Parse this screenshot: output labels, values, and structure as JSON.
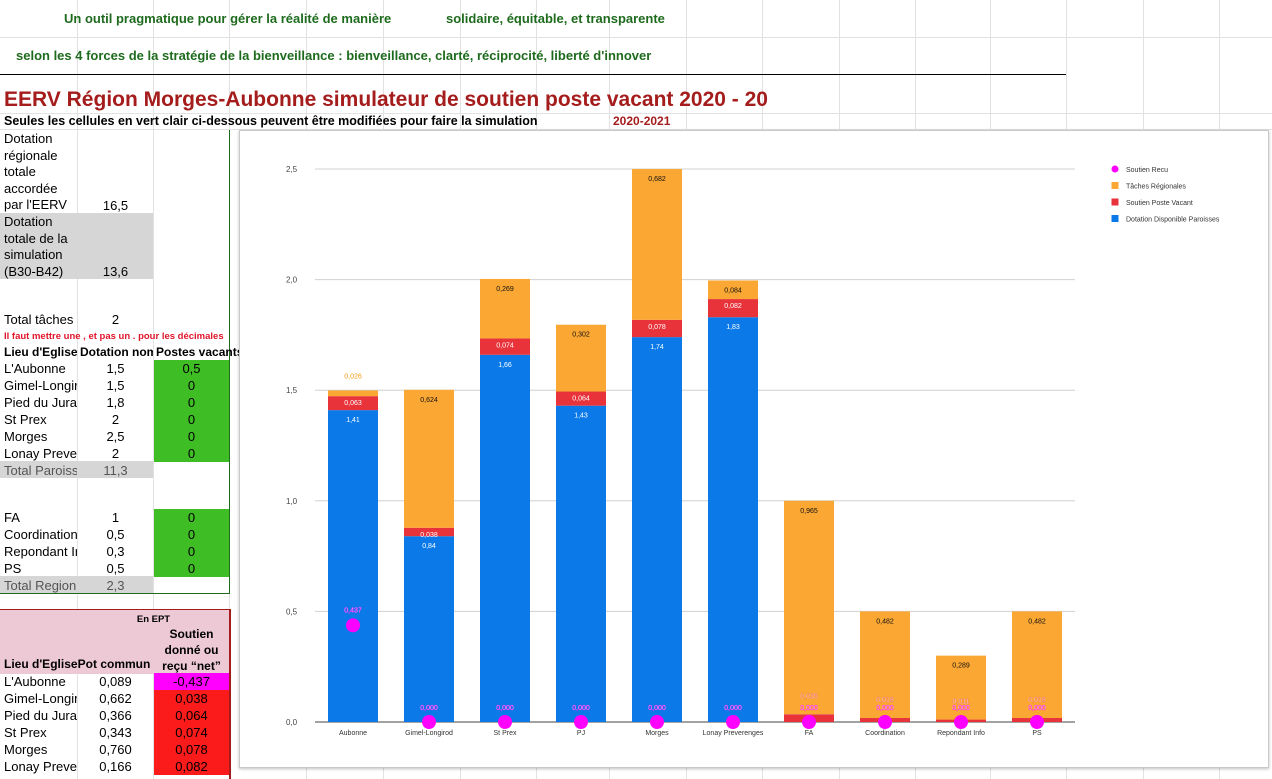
{
  "header": {
    "line1_left": "Un outil pragmatique pour gérer la réalité de manière",
    "line1_right": "solidaire, équitable, et transparente",
    "line2": "selon les 4 forces de la stratégie de la bienveillance : bienveillance, clarté, réciprocité, liberté d'innover"
  },
  "title": "EERV Région Morges-Aubonne  simulateur de soutien poste vacant 2020 - 20",
  "subtitle": "Seules les cellules en vert clair ci-dessous peuvent être modifiées pour faire la simulation",
  "year_label": "2020-2021",
  "dotation_total": {
    "label_lines": [
      "Dotation",
      "régionale",
      "totale",
      "accordée",
      "par l'EERV"
    ],
    "value": "16,5"
  },
  "dotation_sim": {
    "label_lines": [
      "Dotation",
      "totale de la",
      "simulation",
      "(B30-B42)"
    ],
    "value": "13,6"
  },
  "total_taches": {
    "label": "Total tâches r",
    "value": "2"
  },
  "warning": "Il faut mettre une , et pas un . pour les décimales",
  "table1_headers": [
    "Lieu d'Eglise",
    "Dotation nom",
    "Postes vacants"
  ],
  "paroisses": [
    {
      "name": "L'Aubonne",
      "dotation": "1,5",
      "postes": "0,5"
    },
    {
      "name": "Gimel-Longir",
      "dotation": "1,5",
      "postes": "0"
    },
    {
      "name": "Pied du Jura",
      "dotation": "1,8",
      "postes": "0"
    },
    {
      "name": "St Prex",
      "dotation": "2",
      "postes": "0"
    },
    {
      "name": "Morges",
      "dotation": "2,5",
      "postes": "0"
    },
    {
      "name": "Lonay Prever",
      "dotation": "2",
      "postes": "0"
    }
  ],
  "total_paroisses": {
    "label": "Total Paroiss",
    "value": "11,3"
  },
  "region": [
    {
      "name": "FA",
      "dotation": "1",
      "postes": "0"
    },
    {
      "name": "Coordination",
      "dotation": "0,5",
      "postes": "0"
    },
    {
      "name": "Repondant Ir",
      "dotation": "0,3",
      "postes": "0"
    },
    {
      "name": "PS",
      "dotation": "0,5",
      "postes": "0"
    }
  ],
  "total_region": {
    "label": "Total Region",
    "value": "2,3"
  },
  "table2": {
    "group_header": "En EPT",
    "headers": [
      "Lieu d'Eglise",
      "Pot commun",
      "Soutien donné ou reçu “net”"
    ],
    "header3_lines": [
      "Soutien",
      "donné ou",
      "reçu “net”"
    ],
    "rows": [
      {
        "name": "L'Aubonne",
        "pot": "0,089",
        "soutien": "-0,437",
        "color": "#ff00ff"
      },
      {
        "name": "Gimel-Longir",
        "pot": "0,662",
        "soutien": "0,038",
        "color": "#fb1b1b"
      },
      {
        "name": "Pied du Jura",
        "pot": "0,366",
        "soutien": "0,064",
        "color": "#fb1b1b"
      },
      {
        "name": "St Prex",
        "pot": "0,343",
        "soutien": "0,074",
        "color": "#fb1b1b"
      },
      {
        "name": "Morges",
        "pot": "0,760",
        "soutien": "0,078",
        "color": "#fb1b1b"
      },
      {
        "name": "Lonay Prever",
        "pot": "0,166",
        "soutien": "0,082",
        "color": "#fb1b1b"
      }
    ]
  },
  "chart_data": {
    "type": "bar",
    "stacked": true,
    "ylim": [
      0,
      2.5
    ],
    "yticks": [
      "0,0",
      "0,5",
      "1,0",
      "1,5",
      "2,0",
      "2,5"
    ],
    "categories": [
      "Aubonne",
      "Gimel-Longirod",
      "St Prex",
      "PJ",
      "Morges",
      "Lonay Preverenges",
      "FA",
      "Coordination",
      "Repondant Info",
      "PS"
    ],
    "series": [
      {
        "name": "Dotation Disponible Paroisses",
        "color": "#0b7ae8",
        "values": [
          1.41,
          0.84,
          1.66,
          1.43,
          1.74,
          1.83,
          0,
          0,
          0,
          0
        ],
        "labels": [
          "1,41",
          "0,84",
          "1,66",
          "1,43",
          "1,74",
          "1,83",
          "",
          "",
          "",
          ""
        ]
      },
      {
        "name": "Soutien Poste Vacant",
        "color": "#e8333b",
        "values": [
          0.063,
          0.038,
          0.074,
          0.064,
          0.078,
          0.082,
          0.035,
          0.018,
          0.011,
          0.018
        ],
        "labels": [
          "0,063",
          "0,038",
          "0,074",
          "0,064",
          "0,078",
          "0,082",
          "0,035",
          "0,018",
          "0,011",
          "0,018"
        ]
      },
      {
        "name": "Tâches Régionales",
        "color": "#fba733",
        "values": [
          0.026,
          0.624,
          0.269,
          0.302,
          0.682,
          0.084,
          0.965,
          0.482,
          0.289,
          0.482
        ],
        "labels": [
          "0,026",
          "0,624",
          "0,269",
          "0,302",
          "0,682",
          "0,084",
          "0,965",
          "0,482",
          "0,289",
          "0,482"
        ]
      },
      {
        "name": "Soutien Recu",
        "color": "#ff00ff",
        "values": [
          0.437,
          0,
          0,
          0,
          0,
          0,
          0,
          0,
          0,
          0
        ],
        "labels": [
          "0,437",
          "0,000",
          "0,000",
          "0,000",
          "0,000",
          "0,000",
          "0,000",
          "0,000",
          "0,000",
          "0,000"
        ]
      }
    ],
    "legend": [
      {
        "name": "Soutien Recu",
        "color": "#ff00ff",
        "shape": "circle"
      },
      {
        "name": "Tâches Régionales",
        "color": "#fba733",
        "shape": "square"
      },
      {
        "name": "Soutien Poste Vacant",
        "color": "#e8333b",
        "shape": "square"
      },
      {
        "name": "Dotation Disponible Paroisses",
        "color": "#0b7ae8",
        "shape": "square"
      }
    ],
    "legend_position": "top-right"
  }
}
